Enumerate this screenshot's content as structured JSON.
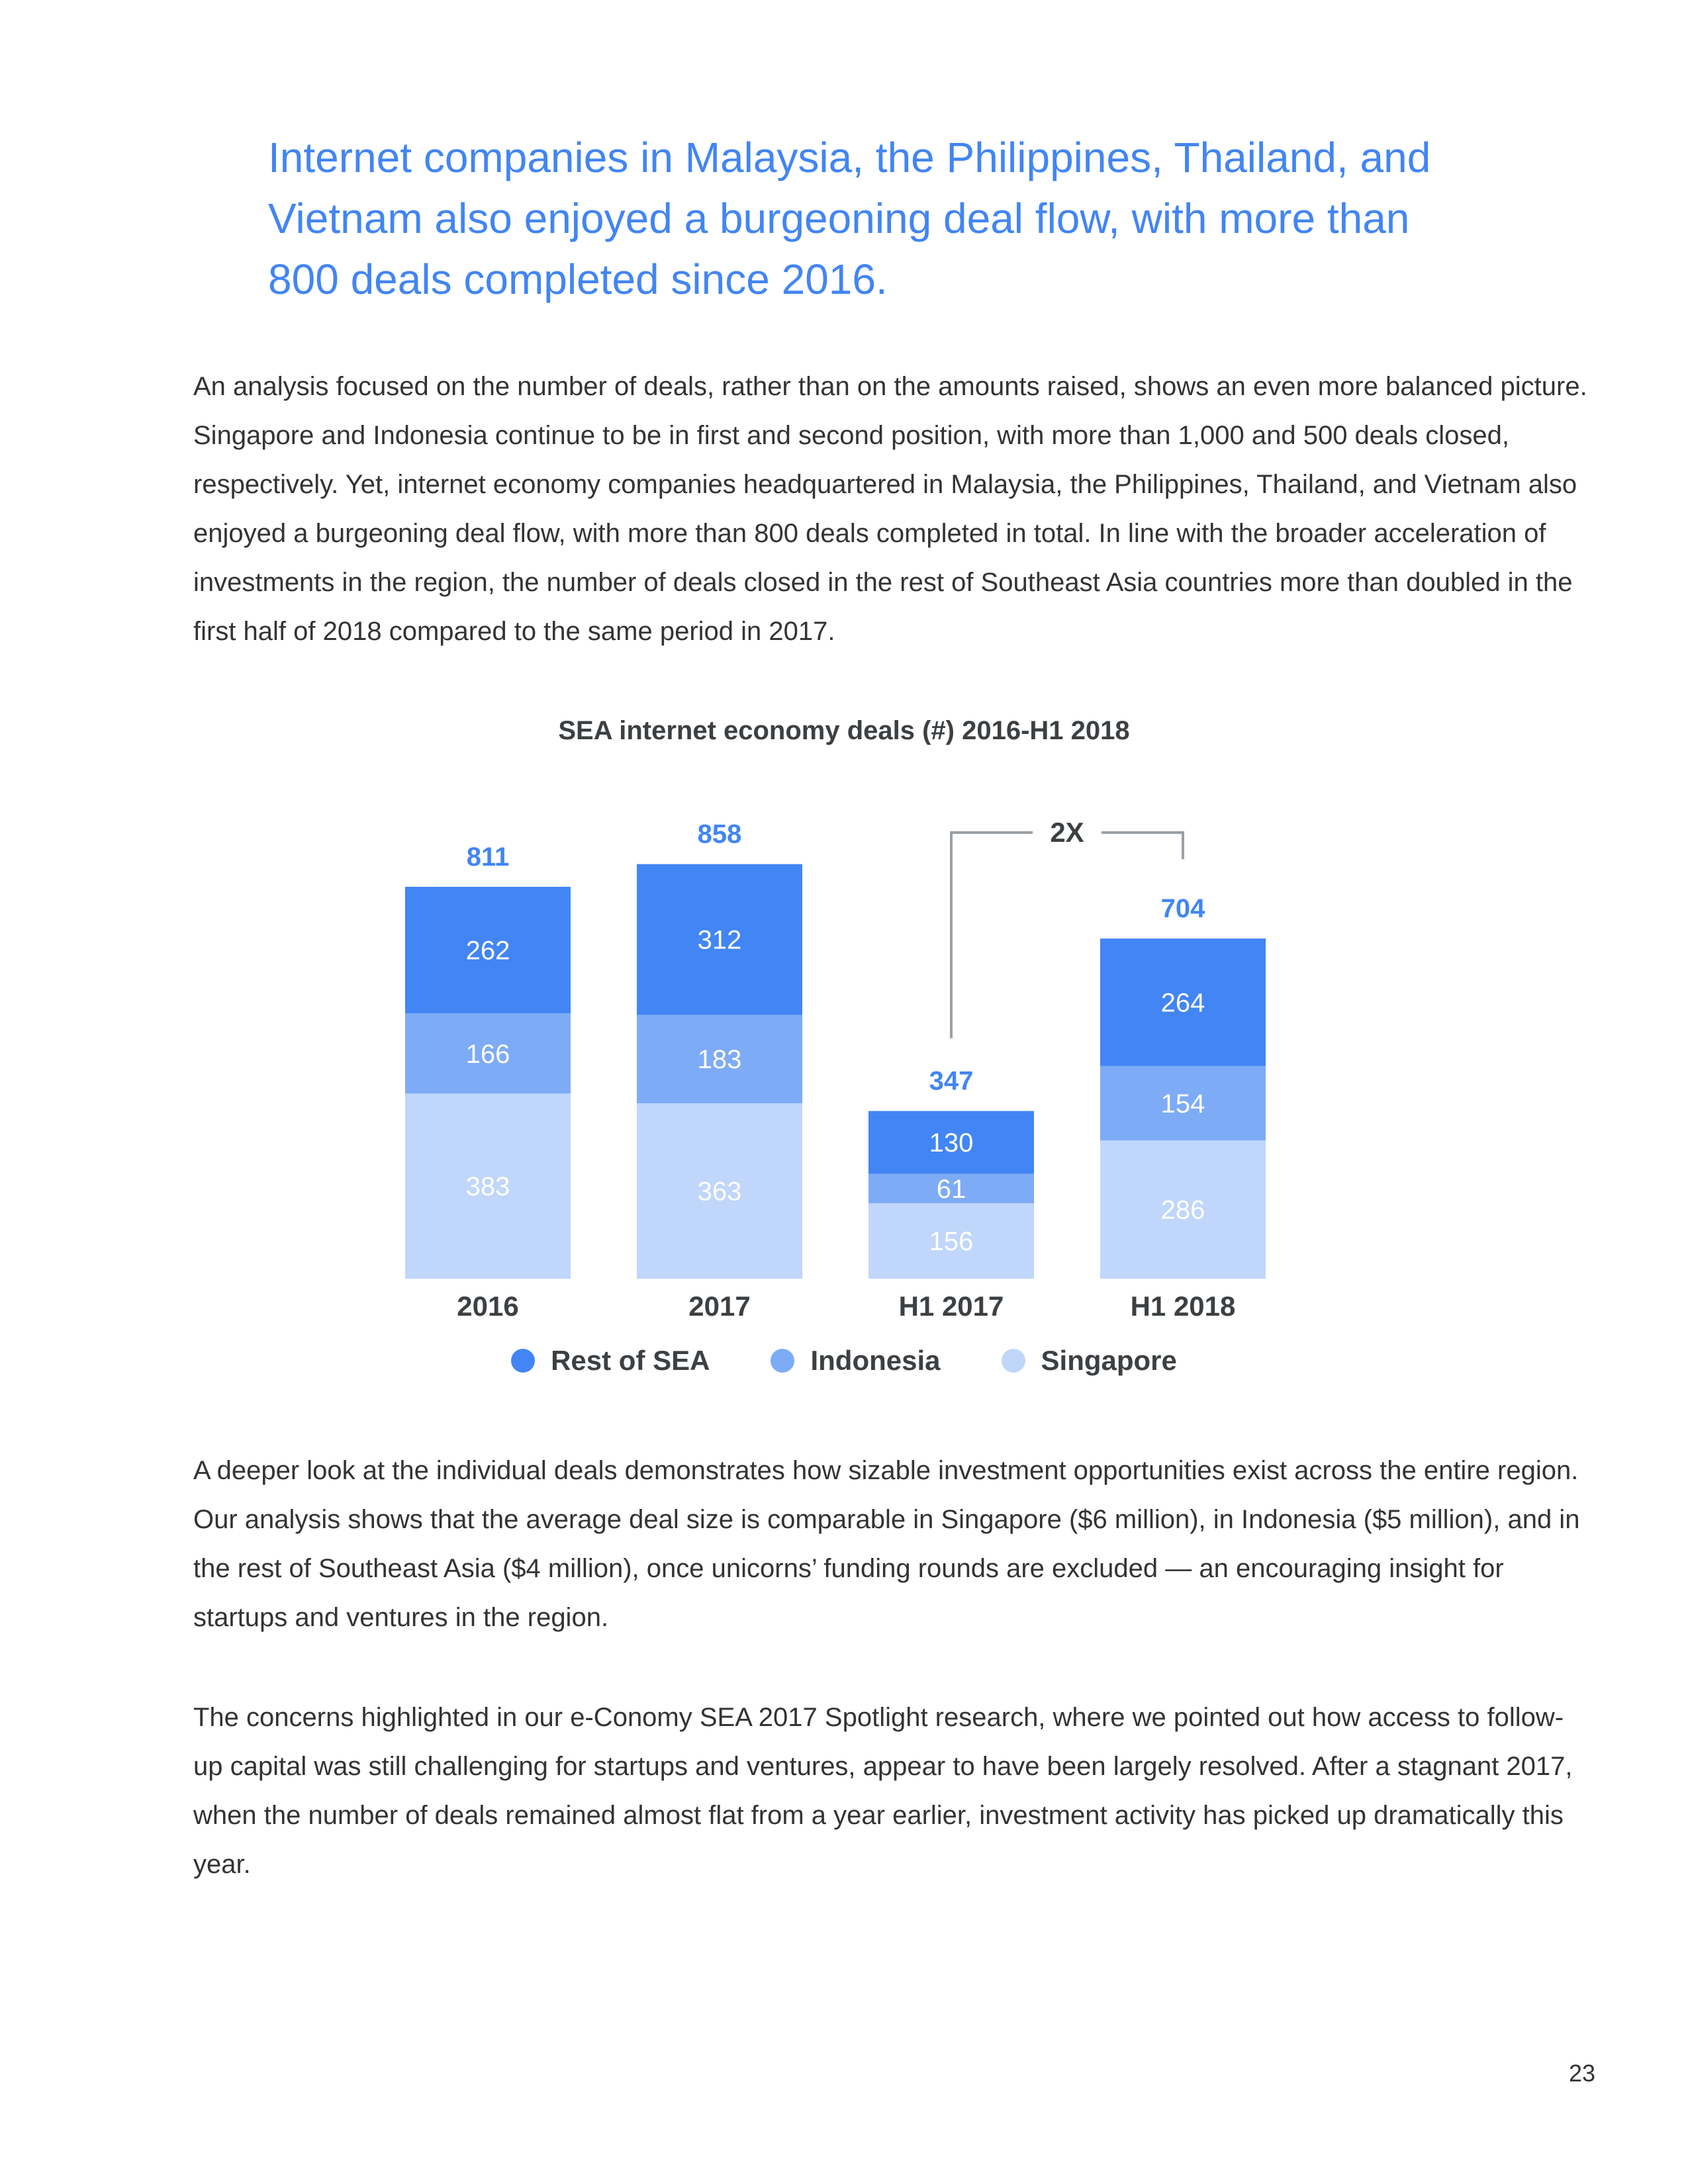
{
  "headline": "Internet companies in Malaysia, the Philippines, Thailand, and Vietnam also enjoyed a burgeoning deal flow, with more than 800 deals completed since 2016.",
  "paragraphs": [
    "An analysis focused on the number of deals, rather than on the amounts raised, shows an even more balanced picture. Singapore and Indonesia continue to be in first and second position, with more than 1,000 and 500 deals closed, respectively. Yet, internet economy companies headquartered in Malaysia, the Philippines, Thailand, and Vietnam also enjoyed a burgeoning deal flow, with more than 800 deals completed in total. In line with the broader acceleration of investments in the region, the number of deals closed in the rest of Southeast Asia countries more than doubled in the first half of 2018 compared to the same period in 2017.",
    "A deeper look at the individual deals demonstrates how sizable investment opportunities exist across the entire region. Our analysis shows that the average deal size is comparable in Singapore ($6 million), in Indonesia ($5 million), and in the rest of Southeast Asia ($4 million), once unicorns’ funding rounds are excluded — an encouraging insight for startups and ventures in the region.",
    "The concerns highlighted in our e-Conomy SEA 2017 Spotlight research, where we pointed out how access to follow-up capital was still challenging for startups and ventures, appear to have been largely resolved. After a stagnant 2017,  when the number of deals remained almost flat from a year earlier, investment activity has picked up dramatically this year."
  ],
  "chart_data": {
    "type": "bar",
    "stacked": true,
    "title": "SEA internet economy deals (#) 2016-H1 2018",
    "categories": [
      "2016",
      "2017",
      "H1 2017",
      "H1 2018"
    ],
    "series": [
      {
        "name": "Singapore",
        "values": [
          383,
          363,
          156,
          286
        ],
        "color": "#c0d6fb"
      },
      {
        "name": "Indonesia",
        "values": [
          166,
          183,
          61,
          154
        ],
        "color": "#7eabf6"
      },
      {
        "name": "Rest of SEA",
        "values": [
          262,
          312,
          130,
          264
        ],
        "color": "#4285f4"
      }
    ],
    "totals": [
      "811",
      "858",
      "347",
      "704"
    ],
    "total_label_color": "#4285f4",
    "annotation": {
      "text": "2X",
      "from_category": "H1 2017",
      "to_category": "H1 2018"
    },
    "legend_order": [
      "Rest of SEA",
      "Indonesia",
      "Singapore"
    ],
    "legend_position": "bottom",
    "grid": false
  },
  "page_number": "23"
}
